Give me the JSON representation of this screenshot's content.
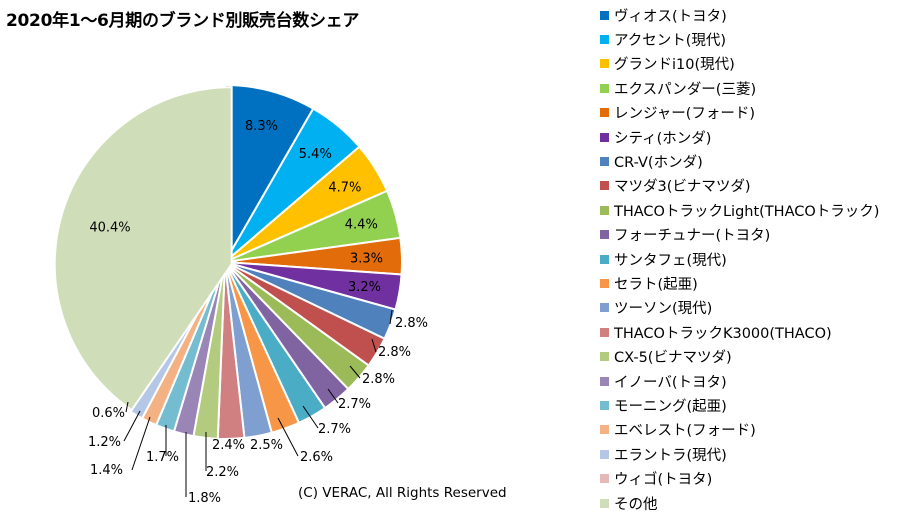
{
  "chart_data": {
    "type": "pie",
    "title": "2020年1～6月期のブランド別販売台数シェア",
    "slices": [
      {
        "name": "ヴィオス(トヨタ)",
        "value": 8.3,
        "label": "8.3%",
        "color": "#0070C0"
      },
      {
        "name": "アクセント(現代)",
        "value": 5.4,
        "label": "5.4%",
        "color": "#00B0F0"
      },
      {
        "name": "グランドi10(現代)",
        "value": 4.7,
        "label": "4.7%",
        "color": "#FFC000"
      },
      {
        "name": "エクスパンダー(三菱)",
        "value": 4.4,
        "label": "4.4%",
        "color": "#92D050"
      },
      {
        "name": "レンジャー(フォード)",
        "value": 3.3,
        "label": "3.3%",
        "color": "#E26B0A"
      },
      {
        "name": "シティ(ホンダ)",
        "value": 3.2,
        "label": "3.2%",
        "color": "#7030A0"
      },
      {
        "name": "CR-V(ホンダ)",
        "value": 2.8,
        "label": "2.8%",
        "color": "#4F81BD"
      },
      {
        "name": "マツダ3(ビナマツダ)",
        "value": 2.8,
        "label": "2.8%",
        "color": "#C0504D"
      },
      {
        "name": "THACOトラックLight(THACOトラック)",
        "value": 2.8,
        "label": "2.8%",
        "color": "#9BBB59"
      },
      {
        "name": "フォーチュナー(トヨタ)",
        "value": 2.7,
        "label": "2.7%",
        "color": "#8064A2"
      },
      {
        "name": "サンタフェ(現代)",
        "value": 2.7,
        "label": "2.7%",
        "color": "#4BACC6"
      },
      {
        "name": "セラト(起亜)",
        "value": 2.6,
        "label": "2.6%",
        "color": "#F79646"
      },
      {
        "name": "ツーソン(現代)",
        "value": 2.5,
        "label": "2.5%",
        "color": "#7F9FD0"
      },
      {
        "name": "THACOトラックK3000(THACO)",
        "value": 2.4,
        "label": "2.4%",
        "color": "#D08080"
      },
      {
        "name": "CX-5(ビナマツダ)",
        "value": 2.2,
        "label": "2.2%",
        "color": "#B2CB7F"
      },
      {
        "name": "イノーバ(トヨタ)",
        "value": 1.8,
        "label": "1.8%",
        "color": "#9A86B6"
      },
      {
        "name": "モーニング(起亜)",
        "value": 1.7,
        "label": "1.7%",
        "color": "#74BDD0"
      },
      {
        "name": "エベレスト(フォード)",
        "value": 1.4,
        "label": "1.4%",
        "color": "#F4B183"
      },
      {
        "name": "エラントラ(現代)",
        "value": 1.2,
        "label": "1.2%",
        "color": "#B4C7E7"
      },
      {
        "name": "ウィゴ(トヨタ)",
        "value": 0.6,
        "label": "0.6%",
        "color": "#E6B9B8"
      },
      {
        "name": "その他",
        "value": 40.4,
        "label": "40.4%",
        "color": "#D0DDB9"
      }
    ],
    "legend": "right"
  },
  "footer": {
    "copyright": "(C) VERAC, All Rights Reserved"
  }
}
